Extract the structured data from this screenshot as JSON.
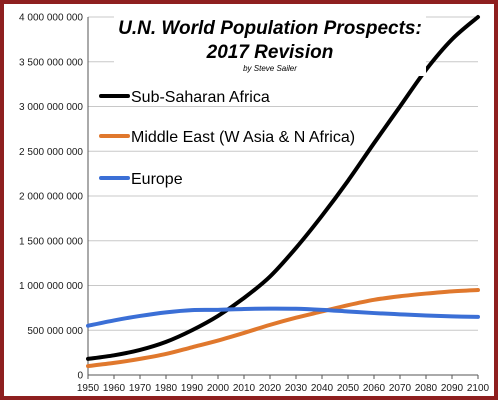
{
  "chart_data": {
    "type": "line",
    "title_line1": "U.N. World Population Prospects:",
    "title_line2": "2017 Revision",
    "credit": "by Steve Sailer",
    "xlabel": "",
    "ylabel": "",
    "xlim": [
      1950,
      2100
    ],
    "ylim": [
      0,
      4000000000
    ],
    "x_ticks": [
      "1950",
      "1960",
      "1970",
      "1980",
      "1990",
      "2000",
      "2010",
      "2020",
      "2030",
      "2040",
      "2050",
      "2060",
      "2070",
      "2080",
      "2090",
      "2100"
    ],
    "y_ticks": [
      "0",
      "500 000 000",
      "1 000 000 000",
      "1 500 000 000",
      "2 000 000 000",
      "2 500 000 000",
      "3 000 000 000",
      "3 500 000 000",
      "4 000 000 000"
    ],
    "y_tick_values": [
      0,
      500000000,
      1000000000,
      1500000000,
      2000000000,
      2500000000,
      3000000000,
      3500000000,
      4000000000
    ],
    "grid": "horizontal",
    "legend_placement": "top-left",
    "x": [
      1950,
      1960,
      1970,
      1980,
      1990,
      2000,
      2010,
      2020,
      2030,
      2040,
      2050,
      2060,
      2070,
      2080,
      2090,
      2100
    ],
    "series": [
      {
        "name": "Sub-Saharan Africa",
        "color": "#000000",
        "values": [
          180000000,
          220000000,
          280000000,
          370000000,
          500000000,
          660000000,
          860000000,
          1100000000,
          1420000000,
          1780000000,
          2170000000,
          2590000000,
          3000000000,
          3410000000,
          3750000000,
          4000000000
        ]
      },
      {
        "name": "Middle East (W Asia & N Africa)",
        "color": "#e0782d",
        "values": [
          100000000,
          135000000,
          180000000,
          235000000,
          310000000,
          385000000,
          470000000,
          560000000,
          640000000,
          710000000,
          780000000,
          840000000,
          880000000,
          910000000,
          935000000,
          950000000
        ]
      },
      {
        "name": "Europe",
        "color": "#3b6fd6",
        "values": [
          550000000,
          610000000,
          660000000,
          700000000,
          725000000,
          728000000,
          738000000,
          742000000,
          740000000,
          728000000,
          710000000,
          692000000,
          678000000,
          665000000,
          655000000,
          650000000
        ]
      }
    ]
  }
}
